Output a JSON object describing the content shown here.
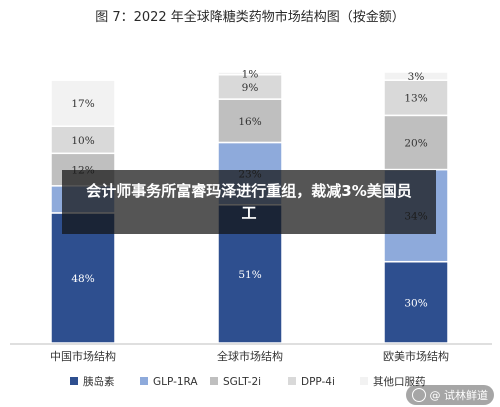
{
  "title": "图 7：2022 年全球降糖类药物市场结构图（按金额）",
  "overlay_headline": "会计师事务所富睿玛泽进行重组，裁减3%美国员工",
  "watermark": "@ 试林鲜道",
  "chart_data": {
    "type": "bar",
    "stacked": true,
    "percent_stacked": true,
    "categories": [
      "中国市场结构",
      "全球市场结构",
      "欧美市场结构"
    ],
    "series": [
      {
        "name": "胰岛素",
        "color": "#2e4f8f",
        "values": [
          48,
          51,
          30
        ],
        "labels": [
          "48%",
          "51%",
          "30%"
        ]
      },
      {
        "name": "GLP-1RA",
        "color": "#8eaadb",
        "values": [
          10,
          23,
          34
        ],
        "labels": [
          "",
          "23%",
          "34%"
        ]
      },
      {
        "name": "SGLT-2i",
        "color": "#bfbfbf",
        "values": [
          12,
          16,
          20
        ],
        "labels": [
          "12%",
          "16%",
          "20%"
        ]
      },
      {
        "name": "DPP-4i",
        "color": "#d9d9d9",
        "values": [
          10,
          9,
          13
        ],
        "labels": [
          "10%",
          "9%",
          "13%"
        ]
      },
      {
        "name": "其他口服药",
        "color": "#f2f2f2",
        "values": [
          17,
          1,
          3
        ],
        "labels": [
          "17%",
          "1%",
          "3%"
        ]
      }
    ],
    "ylim": [
      0,
      100
    ],
    "grid": false,
    "legend": "bottom"
  }
}
